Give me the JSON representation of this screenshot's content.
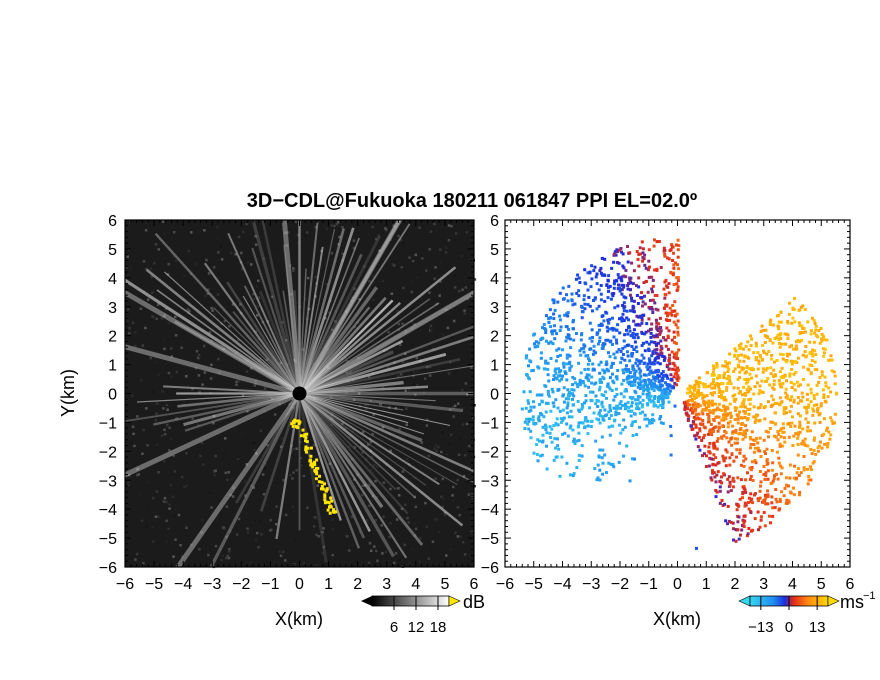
{
  "chart_data": {
    "title": "3D−CDL@Fukuoka 180211 061847 PPI EL=02.0º",
    "panels": [
      {
        "type": "heatmap",
        "quantity": "radar intensity (ppi)",
        "xlabel": "X(km)",
        "ylabel": "Y(km)",
        "xlim": [
          -6,
          6
        ],
        "ylim": [
          -6,
          6
        ],
        "xticks": [
          "−6",
          "−5",
          "−4",
          "−3",
          "−2",
          "−1",
          "0",
          "1",
          "2",
          "3",
          "4",
          "5",
          "6"
        ],
        "yticks": [
          "−6",
          "−5",
          "−4",
          "−3",
          "−2",
          "−1",
          "0",
          "1",
          "2",
          "3",
          "4",
          "5",
          "6"
        ],
        "colorbar": {
          "unit": "dB",
          "ticks": [
            "6",
            "12",
            "18"
          ],
          "range": [
            0,
            21
          ],
          "colormap": "grayscale"
        },
        "highlight_color": "#ffe600",
        "highlight_trace": [
          [
            -0.2,
            -0.9
          ],
          [
            0.1,
            -1.5
          ],
          [
            0.5,
            -2.5
          ],
          [
            0.9,
            -3.4
          ],
          [
            1.1,
            -4.2
          ]
        ]
      },
      {
        "type": "heatmap",
        "quantity": "radial velocity",
        "xlabel": "X(km)",
        "ylabel": "",
        "xlim": [
          -6,
          6
        ],
        "ylim": [
          -6,
          6
        ],
        "xticks": [
          "−6",
          "−5",
          "−4",
          "−3",
          "−2",
          "−1",
          "0",
          "1",
          "2",
          "3",
          "4",
          "5",
          "6"
        ],
        "yticks": [
          "−6",
          "−5",
          "−4",
          "−3",
          "−2",
          "−1",
          "0",
          "1",
          "2",
          "3",
          "4",
          "5",
          "6"
        ],
        "colorbar": {
          "unit": "ms",
          "unit_exponent": "−1",
          "ticks": [
            "−13",
            "0",
            "13"
          ],
          "range": [
            -18,
            18
          ],
          "colormap": "blue-white-red-yellow"
        }
      }
    ]
  }
}
